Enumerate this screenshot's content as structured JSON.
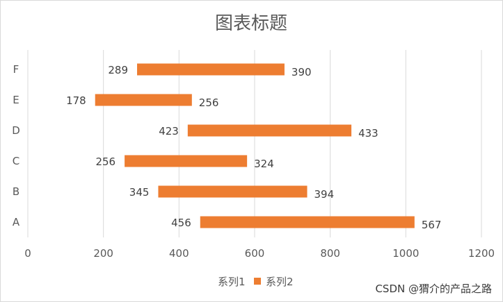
{
  "chart_data": {
    "type": "bar",
    "orientation": "horizontal",
    "stacked": true,
    "title": "图表标题",
    "categories": [
      "A",
      "B",
      "C",
      "D",
      "E",
      "F"
    ],
    "series": [
      {
        "name": "系列1",
        "values": [
          456,
          345,
          256,
          423,
          178,
          289
        ],
        "fill": "none"
      },
      {
        "name": "系列2",
        "values": [
          567,
          394,
          324,
          433,
          256,
          390
        ],
        "fill": "#ED7D31"
      }
    ],
    "xlim": [
      0,
      1200
    ],
    "xticks": [
      0,
      200,
      400,
      600,
      800,
      1000,
      1200
    ],
    "grid": "vertical",
    "legend": "bottom",
    "colors": {
      "series2": "#ED7D31",
      "grid": "#d9d9d9",
      "text": "#595959"
    }
  },
  "watermark": "CSDN @猬介的产品之路"
}
